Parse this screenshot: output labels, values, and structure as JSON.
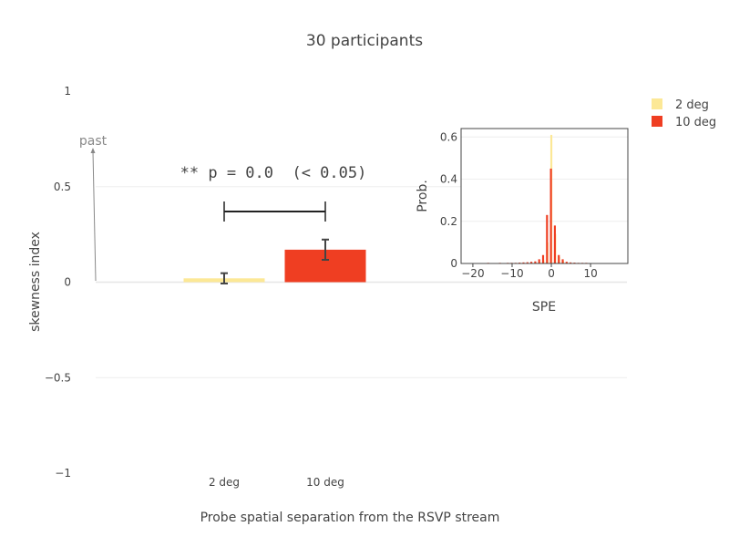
{
  "title": "30 participants",
  "legend": {
    "entries": [
      "2 deg",
      "10 deg"
    ],
    "placement": "top-right"
  },
  "colors": {
    "2 deg": "#fce896",
    "10 deg": "#ef3e22",
    "grid": "#eeeeee",
    "axis_text": "#444444",
    "annotation": "#888888",
    "bracket": "#222222"
  },
  "annotations": {
    "direction": "past",
    "significance": "** p = 0.0  (< 0.05)"
  },
  "chart_data": [
    {
      "type": "bar",
      "title": "30 participants",
      "xlabel": "Probe spatial separation from the RSVP stream",
      "ylabel": "skewness index",
      "categories": [
        "2 deg",
        "10 deg"
      ],
      "values": [
        0.02,
        0.17
      ],
      "errors": [
        0.027,
        0.053
      ],
      "ylim": [
        -1,
        1
      ],
      "yticks": [
        1,
        0.5,
        0,
        -0.5,
        -1
      ],
      "ytick_labels": [
        "1",
        "0.5",
        "0",
        "−0.5",
        "−1"
      ],
      "grid": true
    },
    {
      "type": "bar",
      "xlabel": "SPE",
      "ylabel": "Prob.",
      "xlim": [
        -23,
        19.5
      ],
      "ylim": [
        0,
        0.64
      ],
      "xticks": [
        -20,
        -10,
        0,
        10
      ],
      "xtick_labels": [
        "−20",
        "−10",
        "0",
        "10"
      ],
      "yticks": [
        0,
        0.2,
        0.4,
        0.6
      ],
      "ytick_labels": [
        "0",
        "0.2",
        "0.4",
        "0.6"
      ],
      "grid": true,
      "series": [
        {
          "name": "2 deg",
          "x": [
            -17,
            -16,
            -15,
            -14,
            -13,
            -12,
            -11,
            -10,
            -9,
            -8,
            -7,
            -6,
            -5,
            -4,
            -3,
            -2,
            -1,
            0,
            1,
            2,
            3,
            4,
            5,
            6,
            7,
            8,
            9,
            10,
            11,
            12,
            13,
            14,
            15,
            16,
            17,
            18,
            19
          ],
          "values": [
            0.002,
            0.002,
            0.002,
            0.002,
            0.002,
            0.002,
            0.002,
            0.002,
            0.002,
            0.002,
            0.002,
            0.002,
            0.004,
            0.004,
            0.008,
            0.015,
            0.1,
            0.61,
            0.14,
            0.03,
            0.012,
            0.004,
            0.002,
            0.002,
            0.002,
            0.002,
            0.002,
            0.002,
            0.002,
            0.002,
            0.002,
            0.002,
            0.002,
            0.002,
            0.002,
            0.002,
            0.002
          ]
        },
        {
          "name": "10 deg",
          "x": [
            -22,
            -21,
            -20,
            -19,
            -18,
            -17,
            -16,
            -15,
            -14,
            -13,
            -12,
            -11,
            -10,
            -9,
            -8,
            -7,
            -6,
            -5,
            -4,
            -3,
            -2,
            -1,
            0,
            1,
            2,
            3,
            4,
            5,
            6,
            7,
            8,
            9,
            10,
            11,
            12,
            13,
            14,
            15,
            16,
            17,
            18,
            19
          ],
          "values": [
            0.002,
            0.002,
            0.002,
            0.002,
            0.002,
            0.002,
            0.003,
            0.002,
            0.002,
            0.003,
            0.002,
            0.003,
            0.003,
            0.003,
            0.004,
            0.005,
            0.006,
            0.008,
            0.01,
            0.02,
            0.04,
            0.23,
            0.45,
            0.18,
            0.04,
            0.02,
            0.008,
            0.005,
            0.004,
            0.003,
            0.003,
            0.003,
            0.002,
            0.002,
            0.002,
            0.002,
            0.002,
            0.002,
            0.002,
            0.002,
            0.002,
            0.002
          ]
        }
      ]
    }
  ]
}
